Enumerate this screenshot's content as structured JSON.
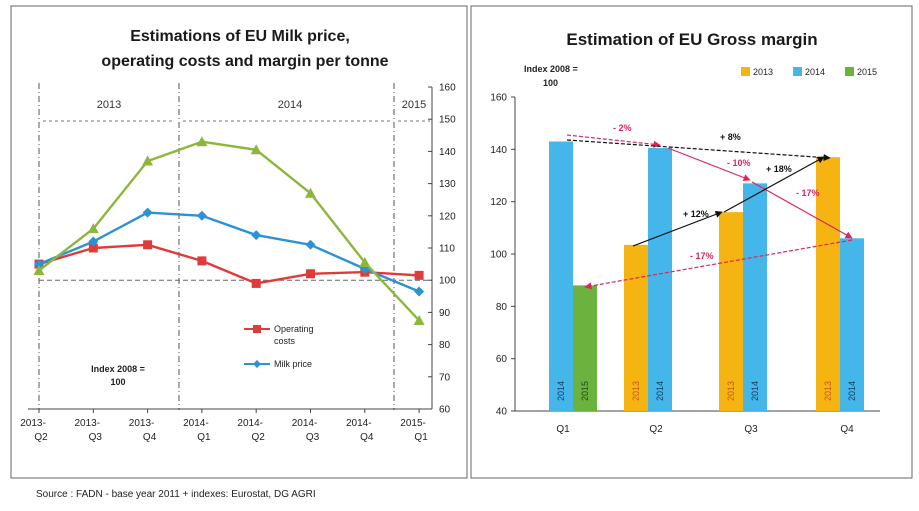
{
  "left_chart": {
    "title_line1": "Estimations of EU Milk price,",
    "title_line2": "operating costs and margin per tonne",
    "year_labels": [
      "2013",
      "2014",
      "2015"
    ],
    "index_label_1": "Index 2008 =",
    "index_label_2": "100",
    "legend_op_1": "Operating",
    "legend_op_2": "costs",
    "legend_milk": "Milk price"
  },
  "right_chart": {
    "title": "Estimation of EU Gross margin",
    "index_label_1": "Index 2008 =",
    "index_label_2": "100",
    "annotations": {
      "a1": "- 2%",
      "a2": "+ 8%",
      "a3": "- 10%",
      "a4": "+ 18%",
      "a5": "- 17%",
      "a6": "+ 12%",
      "a7": "- 17%"
    }
  },
  "source": "Source : FADN - base year 2011 + indexes: Eurostat, DG AGRI",
  "colors": {
    "op_costs": "#e03b3b",
    "milk": "#2c92d6",
    "margin": "#8db63c",
    "y2013": "#f6b412",
    "y2014": "#45b6ea",
    "y2015": "#6cb23f",
    "arrow_red": "#e0245c",
    "arrow_black": "#111111"
  },
  "chart_data": [
    {
      "type": "line",
      "title": "Estimations of EU Milk price, operating costs and margin per tonne",
      "x": [
        "2013-Q2",
        "2013-Q3",
        "2013-Q4",
        "2014-Q1",
        "2014-Q2",
        "2014-Q3",
        "2014-Q4",
        "2015-Q1"
      ],
      "ylim": [
        60,
        160
      ],
      "yticks": [
        60,
        70,
        80,
        90,
        100,
        110,
        120,
        130,
        140,
        150,
        160
      ],
      "reference_line": 100,
      "grid": false,
      "legend": "center-right",
      "series": [
        {
          "name": "Operating costs",
          "values": [
            105,
            110,
            111,
            106,
            99,
            102,
            102.5,
            101.5
          ]
        },
        {
          "name": "Milk price",
          "values": [
            105,
            112,
            121,
            120,
            114,
            111,
            103.5,
            96.5
          ]
        },
        {
          "name": "",
          "values": [
            103,
            116,
            137,
            143,
            140.5,
            127,
            105.5,
            87.5
          ]
        }
      ]
    },
    {
      "type": "bar",
      "title": "Estimation of EU Gross margin",
      "categories": [
        "Q1",
        "Q2",
        "Q3",
        "Q4"
      ],
      "ylim": [
        40,
        160
      ],
      "yticks": [
        40,
        60,
        80,
        100,
        120,
        140,
        160
      ],
      "legend": "top-right",
      "series": [
        {
          "name": "2013",
          "values": [
            null,
            103.5,
            116,
            137
          ]
        },
        {
          "name": "2014",
          "values": [
            143,
            140.5,
            127,
            106
          ]
        },
        {
          "name": "2015",
          "values": [
            88,
            null,
            null,
            null
          ]
        }
      ],
      "bar_labels": [
        {
          "category": "Q1",
          "labels": [
            "2014",
            "2015"
          ]
        },
        {
          "category": "Q2",
          "labels": [
            "2013",
            "2014"
          ]
        },
        {
          "category": "Q3",
          "labels": [
            "2013",
            "2014"
          ]
        },
        {
          "category": "Q4",
          "labels": [
            "2013",
            "2014"
          ]
        }
      ]
    }
  ]
}
